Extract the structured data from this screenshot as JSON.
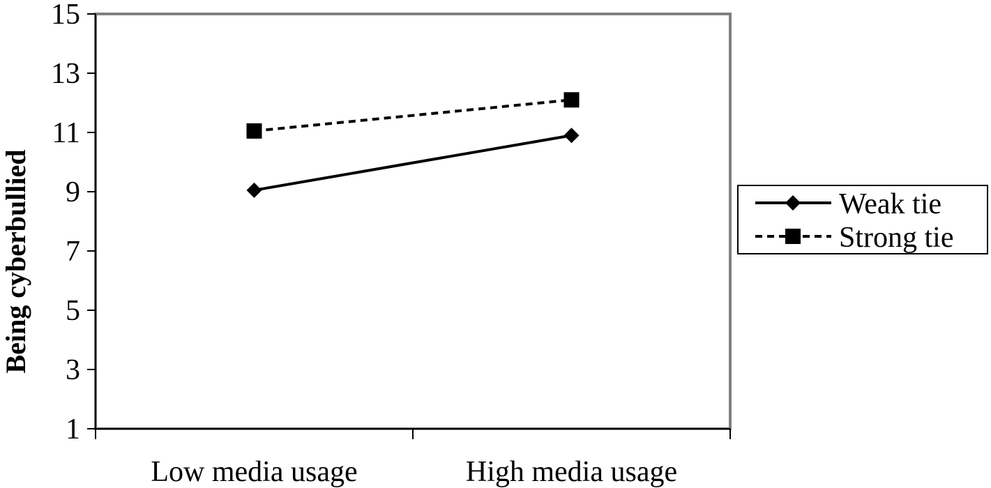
{
  "chart_data": {
    "type": "line",
    "title": "",
    "xlabel": "",
    "ylabel": "Being cyberbullied",
    "categories": [
      "Low media usage",
      "High media usage"
    ],
    "series": [
      {
        "name": "Weak tie",
        "values": [
          9.05,
          10.9
        ],
        "line_style": "solid",
        "marker": "diamond"
      },
      {
        "name": "Strong tie",
        "values": [
          11.05,
          12.1
        ],
        "line_style": "dashed",
        "marker": "square"
      }
    ],
    "ylim": [
      1,
      15
    ],
    "yticks": [
      1,
      3,
      5,
      7,
      9,
      11,
      13,
      15
    ],
    "grid": false,
    "legend_position": "right",
    "colors": {
      "line": "#000000",
      "plot_border": "#808080",
      "background": "#ffffff"
    }
  }
}
